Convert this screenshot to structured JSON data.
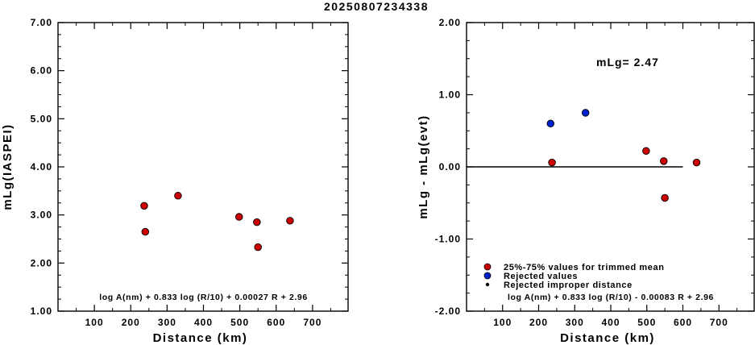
{
  "title": "20250807234338",
  "chart_data": [
    {
      "type": "scatter",
      "xlabel": "Distance (km)",
      "ylabel": "mLg(IASPEI)",
      "xlim": [
        0,
        800
      ],
      "ylim": [
        1.0,
        7.0
      ],
      "x_ticks": [
        "100",
        "200",
        "300",
        "400",
        "500",
        "600",
        "700"
      ],
      "y_ticks": [
        "1.00",
        "2.00",
        "3.00",
        "4.00",
        "5.00",
        "6.00",
        "7.00"
      ],
      "grid": false,
      "formula": "log A(nm) + 0.833 log (R/10) + 0.00027 R + 2.96",
      "series": [
        {
          "color": "#cc0000",
          "points": [
            {
              "x": 237,
              "y": 3.19
            },
            {
              "x": 240,
              "y": 2.65
            },
            {
              "x": 330,
              "y": 3.4
            },
            {
              "x": 498,
              "y": 2.96
            },
            {
              "x": 547,
              "y": 2.85
            },
            {
              "x": 550,
              "y": 2.33
            },
            {
              "x": 638,
              "y": 2.88
            }
          ]
        }
      ]
    },
    {
      "type": "scatter",
      "xlabel": "Distance (km)",
      "ylabel": "mLg - mLg(evt)",
      "xlim": [
        0,
        800
      ],
      "ylim": [
        -2.0,
        2.0
      ],
      "x_ticks": [
        "100",
        "200",
        "300",
        "400",
        "500",
        "600",
        "700"
      ],
      "y_ticks": [
        "-2.00",
        "-1.00",
        "0.00",
        "1.00",
        "2.00"
      ],
      "grid": false,
      "annotation": "mLg= 2.47",
      "formula": "log A(nm) + 0.833 log (R/10) - 0.00083 R  + 2.96",
      "reference_line": {
        "y": 0.0,
        "x_range": [
          0,
          600
        ]
      },
      "legend": {
        "placement": "bottom-left",
        "entries": [
          {
            "label": "25%-75% values for trimmed mean",
            "color": "#cc0000",
            "marker": "circle"
          },
          {
            "label": "Rejected values",
            "color": "#0022cc",
            "marker": "circle"
          },
          {
            "label": "Rejected improper distance",
            "color": "#000000",
            "marker": "dot"
          }
        ]
      },
      "series": [
        {
          "name": "25%-75% values for trimmed mean",
          "color": "#cc0000",
          "points": [
            {
              "x": 237,
              "y": 0.06
            },
            {
              "x": 498,
              "y": 0.22
            },
            {
              "x": 547,
              "y": 0.08
            },
            {
              "x": 550,
              "y": -0.43
            },
            {
              "x": 638,
              "y": 0.06
            }
          ]
        },
        {
          "name": "Rejected values",
          "color": "#0022cc",
          "points": [
            {
              "x": 233,
              "y": 0.6
            },
            {
              "x": 330,
              "y": 0.75
            }
          ]
        }
      ]
    }
  ]
}
